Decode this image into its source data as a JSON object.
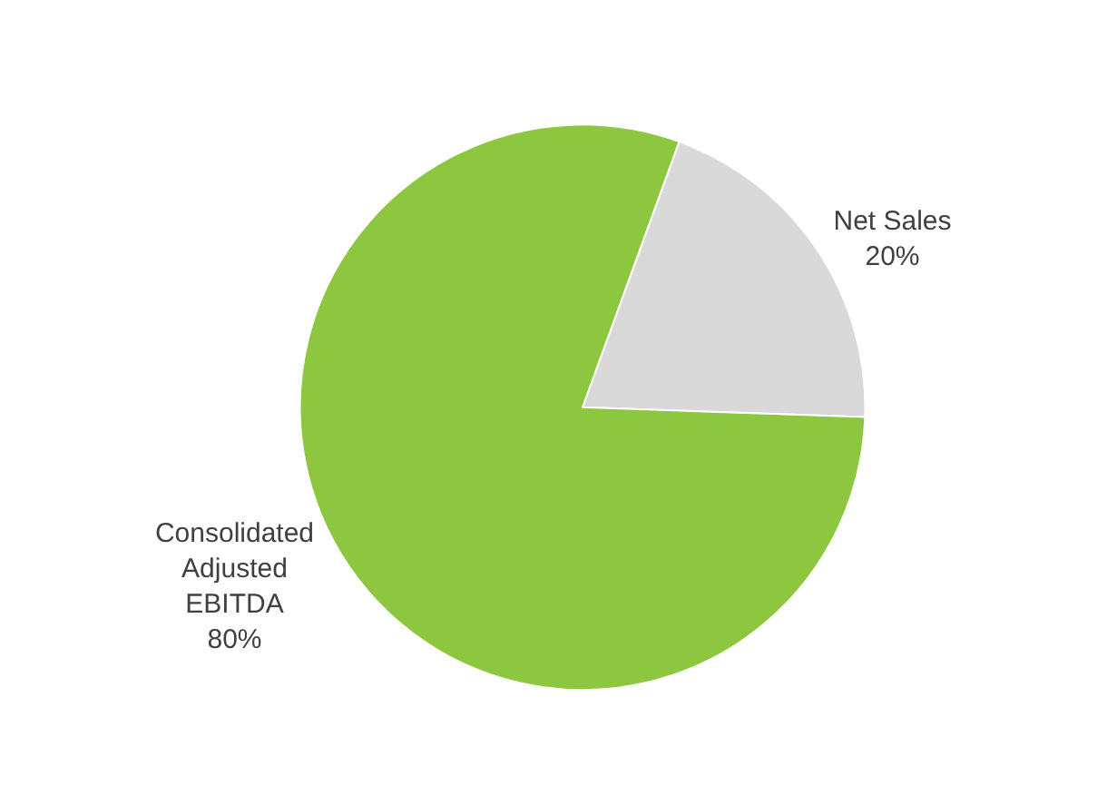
{
  "chart_data": {
    "type": "pie",
    "categories": [
      "Net Sales",
      "Consolidated Adjusted EBITDA"
    ],
    "values": [
      20,
      80
    ],
    "value_labels": [
      "20%",
      "80%"
    ],
    "colors": [
      "#d9d9d9",
      "#8dc63f"
    ],
    "legend": false
  }
}
